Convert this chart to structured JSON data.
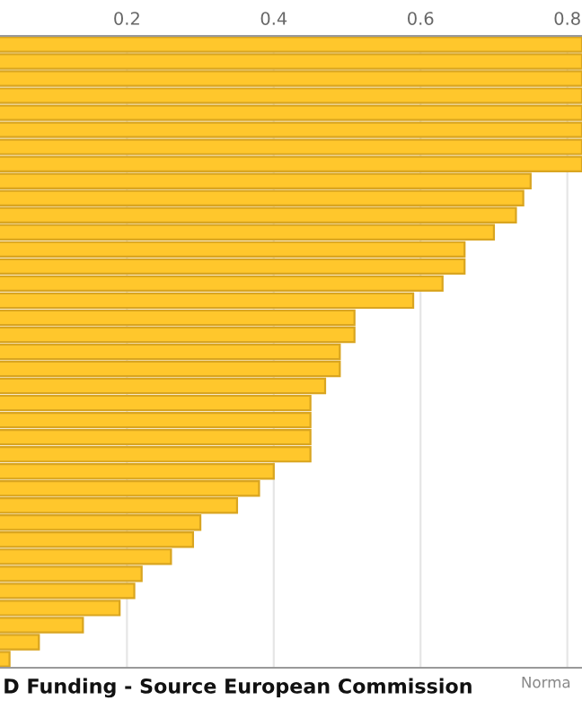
{
  "chart_data": {
    "type": "bar",
    "orientation": "horizontal",
    "categories": [
      null,
      null,
      null,
      null,
      null,
      null,
      null,
      null,
      null,
      null,
      null,
      null,
      null,
      null,
      null,
      null,
      null,
      null,
      null,
      null,
      null,
      null,
      null,
      null,
      null,
      null,
      null,
      null,
      null,
      null,
      null,
      null,
      null,
      null,
      null,
      null,
      null
    ],
    "values": [
      0.82,
      0.82,
      0.82,
      0.82,
      0.82,
      0.82,
      0.82,
      0.82,
      0.75,
      0.74,
      0.73,
      0.7,
      0.66,
      0.66,
      0.63,
      0.59,
      0.51,
      0.51,
      0.49,
      0.49,
      0.47,
      0.45,
      0.45,
      0.45,
      0.45,
      0.4,
      0.38,
      0.35,
      0.3,
      0.29,
      0.26,
      0.22,
      0.21,
      0.19,
      0.14,
      0.08,
      0.04
    ],
    "color": "#ffc72c",
    "xlim": [
      0.027,
      0.82
    ],
    "xticks": [
      0.2,
      0.4,
      0.6,
      0.8
    ],
    "grid": "x",
    "tick_labels": "x",
    "annotations": [
      "D Funding - Source European Commission",
      "Norma"
    ]
  }
}
